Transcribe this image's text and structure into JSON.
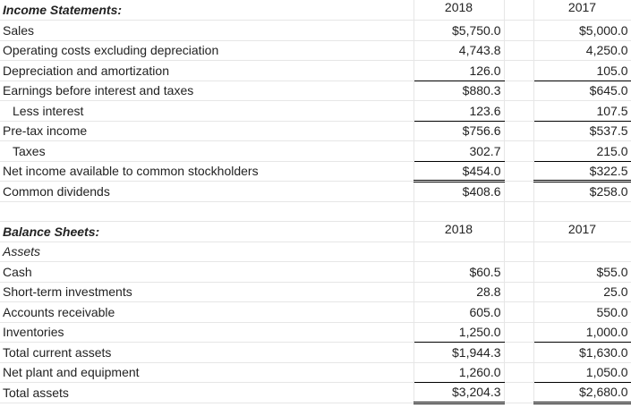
{
  "income": {
    "title": "Income Statements:",
    "col_2018": "2018",
    "col_2017": "2017",
    "rows": [
      {
        "label": "Sales",
        "v2018": "$5,750.0",
        "v2017": "$5,000.0"
      },
      {
        "label": "Operating costs excluding depreciation",
        "v2018": "4,743.8",
        "v2017": "4,250.0"
      },
      {
        "label": "Depreciation and amortization",
        "v2018": "126.0",
        "v2017": "105.0"
      },
      {
        "label": "Earnings before interest and taxes",
        "v2018": "$880.3",
        "v2017": "$645.0"
      },
      {
        "label": "Less interest",
        "v2018": "123.6",
        "v2017": "107.5"
      },
      {
        "label": "Pre-tax income",
        "v2018": "$756.6",
        "v2017": "$537.5"
      },
      {
        "label": "Taxes",
        "v2018": "302.7",
        "v2017": "215.0"
      },
      {
        "label": "Net income available to common stockholders",
        "v2018": "$454.0",
        "v2017": "$322.5"
      },
      {
        "label": "Common dividends",
        "v2018": "$408.6",
        "v2017": "$258.0"
      }
    ]
  },
  "balance": {
    "title": "Balance Sheets:",
    "col_2018": "2018",
    "col_2017": "2017",
    "subtitle": "Assets",
    "rows": [
      {
        "label": "Cash",
        "v2018": "$60.5",
        "v2017": "$55.0"
      },
      {
        "label": "Short-term investments",
        "v2018": "28.8",
        "v2017": "25.0"
      },
      {
        "label": "Accounts receivable",
        "v2018": "605.0",
        "v2017": "550.0"
      },
      {
        "label": "Inventories",
        "v2018": "1,250.0",
        "v2017": "1,000.0"
      },
      {
        "label": "Total current assets",
        "v2018": "$1,944.3",
        "v2017": "$1,630.0"
      },
      {
        "label": "Net plant and equipment",
        "v2018": "1,260.0",
        "v2017": "1,050.0"
      },
      {
        "label": "Total assets",
        "v2018": "$3,204.3",
        "v2017": "$2,680.0"
      }
    ]
  }
}
